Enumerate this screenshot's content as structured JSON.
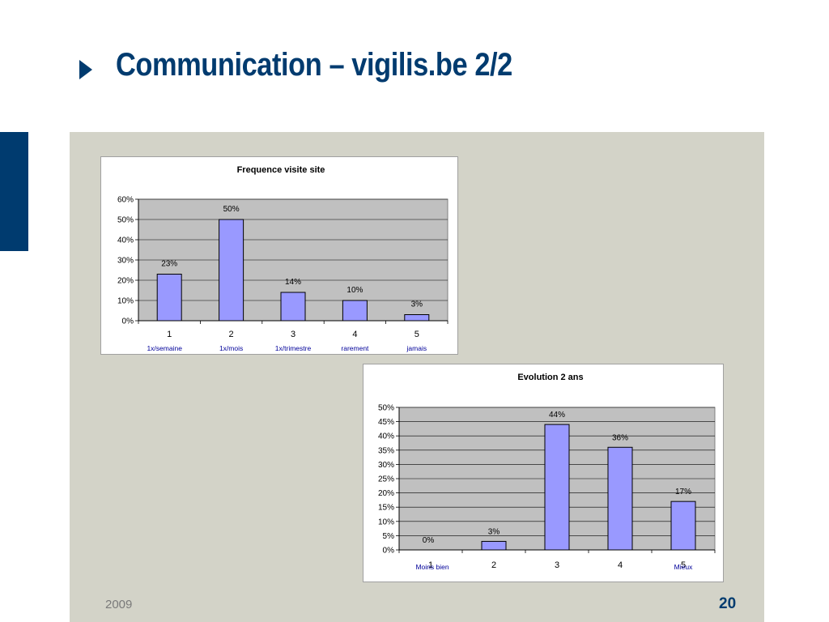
{
  "slide": {
    "title": "Communication – vigilis.be 2/2",
    "year": "2009",
    "page_number": "20",
    "colors": {
      "title": "#003b6f",
      "accent_bar": "#003b6f",
      "panel": "#d3d3c8",
      "bar_fill": "#9999ff",
      "plot_bg": "#c0c0c0"
    }
  },
  "chart_data": [
    {
      "type": "bar",
      "title": "Frequence visite site",
      "categories": [
        "1",
        "2",
        "3",
        "4",
        "5"
      ],
      "sublabels": [
        "1x/semaine",
        "1x/mois",
        "1x/trimestre",
        "rarement",
        "jamais"
      ],
      "values": [
        0.23,
        0.5,
        0.14,
        0.1,
        0.03
      ],
      "data_labels": [
        "23%",
        "50%",
        "14%",
        "10%",
        "3%"
      ],
      "ylim": [
        0,
        0.6
      ],
      "yticks": [
        "0%",
        "10%",
        "20%",
        "30%",
        "40%",
        "50%",
        "60%"
      ],
      "grid": true,
      "legend": "none"
    },
    {
      "type": "bar",
      "title": "Evolution 2 ans",
      "categories": [
        "1",
        "2",
        "3",
        "4",
        "5"
      ],
      "sublabels": [
        "Moins bien",
        "",
        "",
        "",
        "Mieux"
      ],
      "values": [
        0.0,
        0.03,
        0.44,
        0.36,
        0.17
      ],
      "data_labels": [
        "0%",
        "3%",
        "44%",
        "36%",
        "17%"
      ],
      "ylim": [
        0,
        0.5
      ],
      "yticks": [
        "0%",
        "5%",
        "10%",
        "15%",
        "20%",
        "25%",
        "30%",
        "35%",
        "40%",
        "45%",
        "50%"
      ],
      "grid": true,
      "legend": "none"
    }
  ]
}
